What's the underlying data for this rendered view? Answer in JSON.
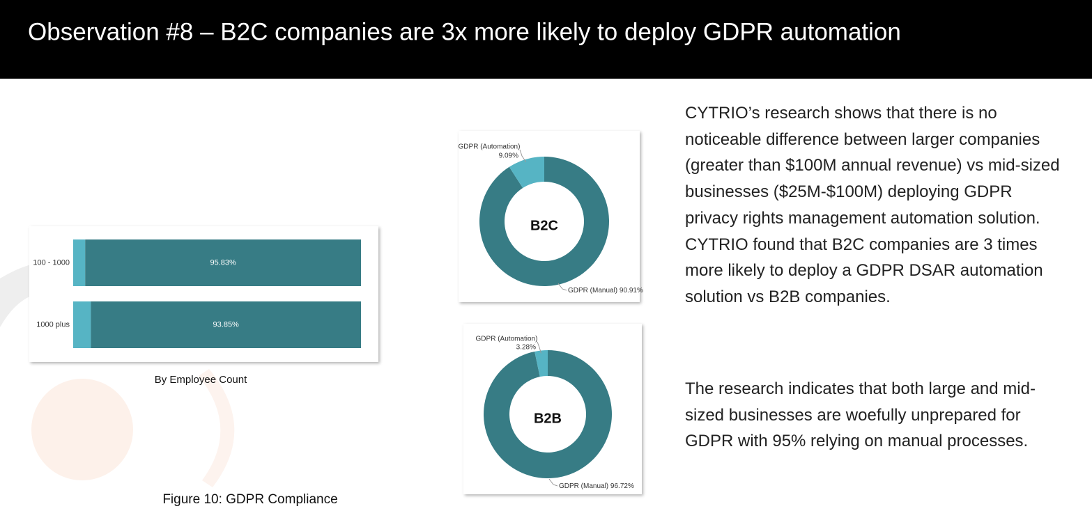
{
  "title": "Observation #8 – B2C companies are 3x more likely to deploy GDPR automation",
  "paragraphs": [
    "CYTRIO’s research shows that there is no noticeable difference between larger companies (greater than $100M annual revenue) vs mid-sized businesses ($25M-$100M) deploying GDPR privacy rights management automation solution. CYTRIO found that B2C companies are 3 times more likely to deploy a GDPR DSAR automation solution vs B2B companies.",
    "The research indicates that both large and mid-sized businesses are woefully unprepared for GDPR with 95% relying on manual processes."
  ],
  "figure_caption": "Figure 10: GDPR Compliance",
  "chart_data": [
    {
      "type": "bar",
      "orientation": "horizontal",
      "stacked": true,
      "caption": "By Employee Count",
      "categories": [
        "100 - 1000",
        "1000 plus"
      ],
      "xlim": [
        0,
        100
      ],
      "series": [
        {
          "color": "#56b4c4",
          "values": [
            4.17,
            6.15
          ]
        },
        {
          "color": "#377c85",
          "values": [
            95.83,
            93.85
          ],
          "value_labels": [
            "95.83%",
            "93.85%"
          ]
        }
      ]
    },
    {
      "type": "pie",
      "donut": true,
      "center_label": "B2C",
      "categories": [
        "GDPR (Automation)",
        "GDPR (Manual)"
      ],
      "values": [
        9.09,
        90.91
      ],
      "value_labels": [
        "9.09%",
        "90.91%"
      ],
      "colors": [
        "#56b4c4",
        "#377c85"
      ]
    },
    {
      "type": "pie",
      "donut": true,
      "center_label": "B2B",
      "categories": [
        "GDPR (Automation)",
        "GDPR (Manual)"
      ],
      "values": [
        3.28,
        96.72
      ],
      "value_labels": [
        "3.28%",
        "96.72%"
      ],
      "colors": [
        "#56b4c4",
        "#377c85"
      ]
    }
  ]
}
